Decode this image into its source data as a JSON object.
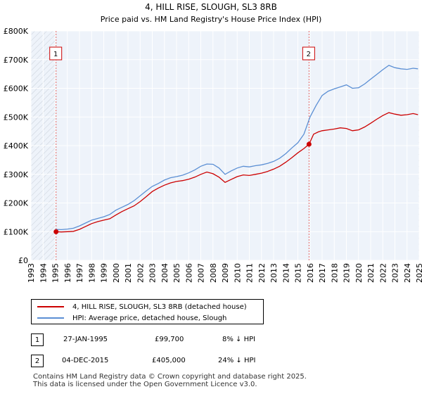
{
  "chart_data": {
    "type": "line",
    "title": "4, HILL RISE, SLOUGH, SL3 8RB",
    "subtitle": "Price paid vs. HM Land Registry's House Price Index (HPI)",
    "ylim": [
      0,
      800000
    ],
    "xlim": [
      1993,
      2025
    ],
    "y_ticks": [
      {
        "value": 0,
        "label": "£0"
      },
      {
        "value": 100000,
        "label": "£100K"
      },
      {
        "value": 200000,
        "label": "£200K"
      },
      {
        "value": 300000,
        "label": "£300K"
      },
      {
        "value": 400000,
        "label": "£400K"
      },
      {
        "value": 500000,
        "label": "£500K"
      },
      {
        "value": 600000,
        "label": "£600K"
      },
      {
        "value": 700000,
        "label": "£700K"
      },
      {
        "value": 800000,
        "label": "£800K"
      }
    ],
    "x_ticks": [
      "1993",
      "1994",
      "1995",
      "1996",
      "1997",
      "1998",
      "1999",
      "2000",
      "2001",
      "2002",
      "2003",
      "2004",
      "2005",
      "2006",
      "2007",
      "2008",
      "2009",
      "2010",
      "2011",
      "2012",
      "2013",
      "2014",
      "2015",
      "2016",
      "2017",
      "2018",
      "2019",
      "2020",
      "2021",
      "2022",
      "2023",
      "2024",
      "2025"
    ],
    "series": [
      {
        "name": "4, HILL RISE, SLOUGH, SL3 8RB (detached house)",
        "color": "#cc0000",
        "points": [
          [
            1995.07,
            99700
          ],
          [
            1995.5,
            99000
          ],
          [
            1996,
            100000
          ],
          [
            1996.5,
            101000
          ],
          [
            1997,
            108000
          ],
          [
            1997.5,
            118000
          ],
          [
            1998,
            128000
          ],
          [
            1998.5,
            135000
          ],
          [
            1999,
            140000
          ],
          [
            1999.5,
            145000
          ],
          [
            2000,
            158000
          ],
          [
            2000.5,
            170000
          ],
          [
            2001,
            180000
          ],
          [
            2001.5,
            190000
          ],
          [
            2002,
            205000
          ],
          [
            2002.5,
            222000
          ],
          [
            2003,
            240000
          ],
          [
            2003.5,
            252000
          ],
          [
            2004,
            262000
          ],
          [
            2004.5,
            270000
          ],
          [
            2005,
            275000
          ],
          [
            2005.5,
            278000
          ],
          [
            2006,
            283000
          ],
          [
            2006.5,
            290000
          ],
          [
            2007,
            300000
          ],
          [
            2007.5,
            308000
          ],
          [
            2008,
            302000
          ],
          [
            2008.5,
            290000
          ],
          [
            2009,
            272000
          ],
          [
            2009.5,
            282000
          ],
          [
            2010,
            292000
          ],
          [
            2010.5,
            298000
          ],
          [
            2011,
            296000
          ],
          [
            2011.5,
            300000
          ],
          [
            2012,
            304000
          ],
          [
            2012.5,
            310000
          ],
          [
            2013,
            318000
          ],
          [
            2013.5,
            328000
          ],
          [
            2014,
            342000
          ],
          [
            2014.5,
            358000
          ],
          [
            2015,
            375000
          ],
          [
            2015.5,
            390000
          ],
          [
            2015.92,
            405000
          ],
          [
            2016.3,
            440000
          ],
          [
            2016.7,
            448000
          ],
          [
            2017,
            452000
          ],
          [
            2017.5,
            455000
          ],
          [
            2018,
            458000
          ],
          [
            2018.5,
            462000
          ],
          [
            2019,
            460000
          ],
          [
            2019.5,
            452000
          ],
          [
            2020,
            455000
          ],
          [
            2020.5,
            465000
          ],
          [
            2021,
            478000
          ],
          [
            2021.5,
            492000
          ],
          [
            2022,
            505000
          ],
          [
            2022.5,
            515000
          ],
          [
            2023,
            510000
          ],
          [
            2023.5,
            506000
          ],
          [
            2024,
            508000
          ],
          [
            2024.5,
            512000
          ],
          [
            2024.9,
            508000
          ]
        ]
      },
      {
        "name": "HPI: Average price, detached house, Slough",
        "color": "#5b8fd4",
        "points": [
          [
            1995,
            108000
          ],
          [
            1995.5,
            107000
          ],
          [
            1996,
            109000
          ],
          [
            1996.5,
            112000
          ],
          [
            1997,
            120000
          ],
          [
            1997.5,
            130000
          ],
          [
            1998,
            140000
          ],
          [
            1998.5,
            146000
          ],
          [
            1999,
            152000
          ],
          [
            1999.5,
            160000
          ],
          [
            2000,
            175000
          ],
          [
            2000.5,
            185000
          ],
          [
            2001,
            195000
          ],
          [
            2001.5,
            208000
          ],
          [
            2002,
            225000
          ],
          [
            2002.5,
            242000
          ],
          [
            2003,
            258000
          ],
          [
            2003.5,
            268000
          ],
          [
            2004,
            280000
          ],
          [
            2004.5,
            288000
          ],
          [
            2005,
            292000
          ],
          [
            2005.5,
            297000
          ],
          [
            2006,
            305000
          ],
          [
            2006.5,
            315000
          ],
          [
            2007,
            328000
          ],
          [
            2007.5,
            336000
          ],
          [
            2008,
            335000
          ],
          [
            2008.5,
            322000
          ],
          [
            2009,
            300000
          ],
          [
            2009.5,
            312000
          ],
          [
            2010,
            322000
          ],
          [
            2010.5,
            328000
          ],
          [
            2011,
            326000
          ],
          [
            2011.5,
            330000
          ],
          [
            2012,
            333000
          ],
          [
            2012.5,
            338000
          ],
          [
            2013,
            345000
          ],
          [
            2013.5,
            356000
          ],
          [
            2014,
            372000
          ],
          [
            2014.5,
            392000
          ],
          [
            2015,
            410000
          ],
          [
            2015.5,
            440000
          ],
          [
            2016,
            500000
          ],
          [
            2016.5,
            540000
          ],
          [
            2017,
            575000
          ],
          [
            2017.5,
            590000
          ],
          [
            2018,
            598000
          ],
          [
            2018.5,
            605000
          ],
          [
            2019,
            612000
          ],
          [
            2019.5,
            600000
          ],
          [
            2020,
            602000
          ],
          [
            2020.5,
            615000
          ],
          [
            2021,
            632000
          ],
          [
            2021.5,
            648000
          ],
          [
            2022,
            665000
          ],
          [
            2022.5,
            680000
          ],
          [
            2023,
            672000
          ],
          [
            2023.5,
            668000
          ],
          [
            2024,
            666000
          ],
          [
            2024.5,
            670000
          ],
          [
            2024.9,
            668000
          ]
        ]
      }
    ],
    "annotations": [
      {
        "label": "1",
        "x": 1995.07,
        "y": 99700
      },
      {
        "label": "2",
        "x": 2015.92,
        "y": 405000
      }
    ]
  },
  "legend": {
    "items": [
      {
        "label": "4, HILL RISE, SLOUGH, SL3 8RB (detached house)",
        "color": "#cc0000"
      },
      {
        "label": "HPI: Average price, detached house, Slough",
        "color": "#5b8fd4"
      }
    ]
  },
  "transactions": [
    {
      "num": "1",
      "date": "27-JAN-1995",
      "price": "£99,700",
      "hpi": "8% ↓ HPI"
    },
    {
      "num": "2",
      "date": "04-DEC-2015",
      "price": "£405,000",
      "hpi": "24% ↓ HPI"
    }
  ],
  "footer": {
    "line1": "Contains HM Land Registry data © Crown copyright and database right 2025.",
    "line2": "This data is licensed under the Open Government Licence v3.0."
  }
}
